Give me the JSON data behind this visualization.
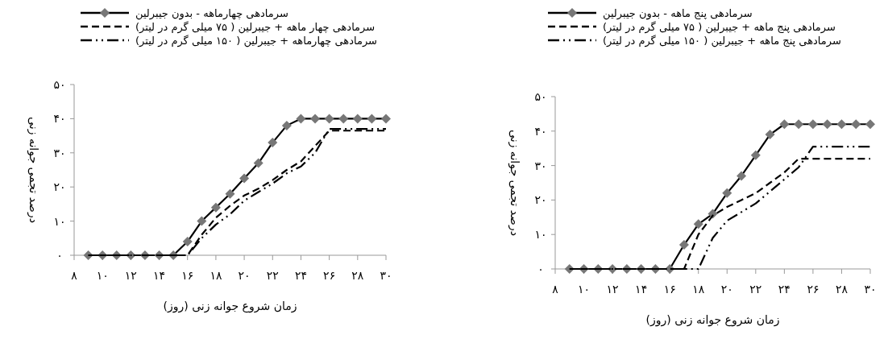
{
  "chart_data": [
    {
      "type": "line",
      "xlabel": "زمان شروع جوانه زنی (روز)",
      "ylabel": "درصد تجمی جوانه زنی",
      "legend": "top",
      "x": [
        9,
        10,
        11,
        12,
        13,
        14,
        15,
        16,
        17,
        18,
        19,
        20,
        21,
        22,
        23,
        24,
        25,
        26,
        27,
        28,
        29,
        30
      ],
      "xlim": [
        8,
        30
      ],
      "xticks": [
        {
          "value": 8,
          "label": "۸"
        },
        {
          "value": 10,
          "label": "۱۰"
        },
        {
          "value": 12,
          "label": "۱۲"
        },
        {
          "value": 14,
          "label": "۱۴"
        },
        {
          "value": 16,
          "label": "۱۶"
        },
        {
          "value": 18,
          "label": "۱۸"
        },
        {
          "value": 20,
          "label": "۲۰"
        },
        {
          "value": 22,
          "label": "۲۲"
        },
        {
          "value": 24,
          "label": "۲۴"
        },
        {
          "value": 26,
          "label": "۲۶"
        },
        {
          "value": 28,
          "label": "۲۸"
        },
        {
          "value": 30,
          "label": "۳۰"
        }
      ],
      "ylim": [
        0,
        50
      ],
      "yticks": [
        {
          "value": 0,
          "label": "۰"
        },
        {
          "value": 10,
          "label": "۱۰"
        },
        {
          "value": 20,
          "label": "۲۰"
        },
        {
          "value": 30,
          "label": "۳۰"
        },
        {
          "value": 40,
          "label": "۴۰"
        },
        {
          "value": 50,
          "label": "۵۰"
        }
      ],
      "series": [
        {
          "name": "سرمادهی چهارماهه - بدون جیبرلین",
          "color": "#000000",
          "marker": "diamond",
          "line_style": "solid",
          "values": [
            0,
            0,
            0,
            0,
            0,
            0,
            0,
            4,
            10,
            14,
            18,
            22.5,
            27,
            33,
            38,
            40,
            40,
            40,
            40,
            40,
            40,
            40
          ]
        },
        {
          "name": "سرمادهی چهار ماهه + جیبرلین ( ۷۵ میلی گرم در لیتر)",
          "color": "#000000",
          "marker": "none",
          "line_style": "dashed",
          "values": [
            0,
            0,
            0,
            0,
            0,
            0,
            0,
            0,
            6,
            11,
            14.5,
            17.5,
            19.5,
            22,
            25,
            27.5,
            32,
            36.5,
            36.5,
            36.5,
            36.5,
            36.5
          ]
        },
        {
          "name": "سرمادهی چهارماهه + جیبرلین ( ۱۵۰ میلی گرم در لیتر)",
          "color": "#000000",
          "marker": "none",
          "line_style": "dashdot",
          "values": [
            0,
            0,
            0,
            0,
            0,
            0,
            0,
            0,
            5,
            9,
            12,
            16,
            18.5,
            21,
            24,
            26,
            30,
            37,
            37,
            37,
            37,
            37
          ]
        }
      ]
    },
    {
      "type": "line",
      "xlabel": "زمان شروع جوانه زنی (روز)",
      "ylabel": "درصد تجمی جوانه زنی",
      "legend": "top",
      "x": [
        9,
        10,
        11,
        12,
        13,
        14,
        15,
        16,
        17,
        18,
        19,
        20,
        21,
        22,
        23,
        24,
        25,
        26,
        27,
        28,
        29,
        30
      ],
      "xlim": [
        8,
        30
      ],
      "xticks": [
        {
          "value": 8,
          "label": "۸"
        },
        {
          "value": 10,
          "label": "۱۰"
        },
        {
          "value": 12,
          "label": "۱۲"
        },
        {
          "value": 14,
          "label": "۱۴"
        },
        {
          "value": 16,
          "label": "۱۶"
        },
        {
          "value": 18,
          "label": "۱۸"
        },
        {
          "value": 20,
          "label": "۲۰"
        },
        {
          "value": 22,
          "label": "۲۲"
        },
        {
          "value": 24,
          "label": "۲۴"
        },
        {
          "value": 26,
          "label": "۲۶"
        },
        {
          "value": 28,
          "label": "۲۸"
        },
        {
          "value": 30,
          "label": "۳۰"
        }
      ],
      "ylim": [
        0,
        50
      ],
      "yticks": [
        {
          "value": 0,
          "label": "۰"
        },
        {
          "value": 10,
          "label": "۱۰"
        },
        {
          "value": 20,
          "label": "۲۰"
        },
        {
          "value": 30,
          "label": "۳۰"
        },
        {
          "value": 40,
          "label": "۴۰"
        },
        {
          "value": 50,
          "label": "۵۰"
        }
      ],
      "series": [
        {
          "name": "سرمادهی پنج ماهه - بدون جیبرلین",
          "color": "#000000",
          "marker": "diamond",
          "line_style": "solid",
          "values": [
            0,
            0,
            0,
            0,
            0,
            0,
            0,
            0,
            7,
            13,
            16,
            22,
            27,
            33,
            39,
            42,
            42,
            42,
            42,
            42,
            42,
            42
          ]
        },
        {
          "name": "سرمادهی پنج ماهه + جیبرلین ( ۷۵ میلی گرم در لیتر)",
          "color": "#000000",
          "marker": "none",
          "line_style": "dashed",
          "values": [
            0,
            0,
            0,
            0,
            0,
            0,
            0,
            0,
            0,
            10,
            15.5,
            18,
            20,
            22,
            25,
            28,
            32,
            32,
            32,
            32,
            32,
            32
          ]
        },
        {
          "name": "سرمادهی پنج ماهه + جیبرلین ( ۱۵۰ میلی گرم در لیتر)",
          "color": "#000000",
          "marker": "none",
          "line_style": "dashdot",
          "values": [
            0,
            0,
            0,
            0,
            0,
            0,
            0,
            0,
            0,
            0,
            9,
            14,
            16.5,
            19,
            22.5,
            26,
            29.5,
            35.5,
            35.5,
            35.5,
            35.5,
            35.5
          ]
        }
      ]
    }
  ]
}
